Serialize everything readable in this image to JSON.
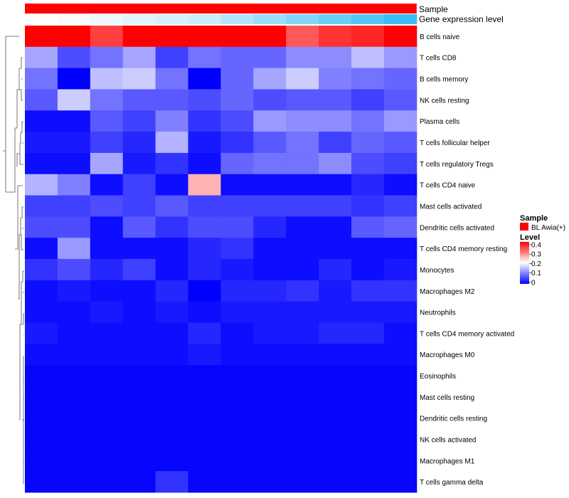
{
  "chart_data": {
    "type": "heatmap",
    "annotation_tracks": [
      {
        "name": "Sample",
        "label": "Sample"
      },
      {
        "name": "Gene expression level",
        "label": "Gene expression level"
      }
    ],
    "gene_expression_level": [
      0.0,
      0.02,
      0.06,
      0.1,
      0.14,
      0.18,
      0.26,
      0.34,
      0.42,
      0.5,
      0.58,
      0.66
    ],
    "rows": [
      "B cells naive",
      "T cells CD8",
      "B cells memory",
      "NK cells resting",
      "Plasma cells",
      "T cells follicular helper",
      "T cells regulatory  Tregs",
      "T cells CD4 naive",
      "Mast cells activated",
      "Dendritic cells activated",
      "T cells CD4 memory resting",
      "Monocytes",
      "Macrophages M2",
      "Neutrophils",
      "T cells CD4 memory activated",
      "Macrophages M0",
      "Eosinophils",
      "Mast cells resting",
      "Dendritic cells resting",
      "NK cells activated",
      "Macrophages M1",
      "T cells gamma delta"
    ],
    "values": [
      [
        0.43,
        0.43,
        0.35,
        0.4,
        0.41,
        0.42,
        0.43,
        0.4,
        0.33,
        0.36,
        0.37,
        0.42
      ],
      [
        0.13,
        0.06,
        0.09,
        0.13,
        0.05,
        0.09,
        0.08,
        0.08,
        0.11,
        0.11,
        0.15,
        0.12
      ],
      [
        0.09,
        0.0,
        0.15,
        0.16,
        0.09,
        0.0,
        0.08,
        0.13,
        0.16,
        0.1,
        0.09,
        0.08
      ],
      [
        0.07,
        0.16,
        0.09,
        0.07,
        0.07,
        0.06,
        0.08,
        0.06,
        0.07,
        0.07,
        0.05,
        0.07
      ],
      [
        0.01,
        0.01,
        0.07,
        0.05,
        0.1,
        0.04,
        0.06,
        0.12,
        0.11,
        0.11,
        0.09,
        0.12
      ],
      [
        0.02,
        0.02,
        0.05,
        0.03,
        0.14,
        0.02,
        0.04,
        0.07,
        0.09,
        0.05,
        0.08,
        0.07
      ],
      [
        0.01,
        0.01,
        0.13,
        0.02,
        0.04,
        0.01,
        0.08,
        0.09,
        0.09,
        0.11,
        0.06,
        0.05
      ],
      [
        0.14,
        0.1,
        0.01,
        0.05,
        0.01,
        0.26,
        0.01,
        0.01,
        0.01,
        0.01,
        0.03,
        0.01
      ],
      [
        0.05,
        0.05,
        0.06,
        0.05,
        0.07,
        0.05,
        0.05,
        0.05,
        0.05,
        0.05,
        0.04,
        0.05
      ],
      [
        0.06,
        0.06,
        0.01,
        0.07,
        0.04,
        0.06,
        0.06,
        0.03,
        0.01,
        0.01,
        0.07,
        0.08
      ],
      [
        0.01,
        0.12,
        0.01,
        0.01,
        0.01,
        0.03,
        0.04,
        0.01,
        0.01,
        0.01,
        0.01,
        0.01
      ],
      [
        0.04,
        0.06,
        0.03,
        0.05,
        0.01,
        0.03,
        0.02,
        0.01,
        0.01,
        0.03,
        0.01,
        0.02
      ],
      [
        0.01,
        0.02,
        0.01,
        0.01,
        0.03,
        0.0,
        0.03,
        0.03,
        0.04,
        0.02,
        0.04,
        0.04
      ],
      [
        0.01,
        0.01,
        0.02,
        0.01,
        0.02,
        0.01,
        0.02,
        0.02,
        0.02,
        0.02,
        0.02,
        0.02
      ],
      [
        0.02,
        0.01,
        0.01,
        0.01,
        0.01,
        0.03,
        0.01,
        0.02,
        0.02,
        0.03,
        0.03,
        0.01
      ],
      [
        0.01,
        0.01,
        0.01,
        0.01,
        0.01,
        0.02,
        0.01,
        0.01,
        0.01,
        0.01,
        0.01,
        0.01
      ],
      [
        0.005,
        0.005,
        0.005,
        0.005,
        0.005,
        0.005,
        0.005,
        0.005,
        0.005,
        0.005,
        0.005,
        0.005
      ],
      [
        0.005,
        0.005,
        0.005,
        0.005,
        0.005,
        0.005,
        0.005,
        0.005,
        0.005,
        0.005,
        0.005,
        0.005
      ],
      [
        0.005,
        0.005,
        0.005,
        0.005,
        0.005,
        0.005,
        0.005,
        0.005,
        0.005,
        0.005,
        0.005,
        0.005
      ],
      [
        0.005,
        0.005,
        0.005,
        0.005,
        0.005,
        0.005,
        0.005,
        0.005,
        0.005,
        0.005,
        0.005,
        0.005
      ],
      [
        0.005,
        0.005,
        0.005,
        0.005,
        0.005,
        0.005,
        0.005,
        0.005,
        0.005,
        0.005,
        0.005,
        0.005
      ],
      [
        0.005,
        0.005,
        0.005,
        0.005,
        0.04,
        0.005,
        0.005,
        0.005,
        0.005,
        0.005,
        0.005,
        0.005
      ]
    ],
    "color_scale": {
      "min": 0,
      "mid": 0.2,
      "max": 0.4,
      "low": "#0000FF",
      "midColor": "#FFFFFF",
      "high": "#FF0000"
    },
    "legend": {
      "sample_title": "Sample",
      "sample_entry": "BL Awia(+)",
      "sample_color": "#FF0000",
      "level_title": "Level",
      "level_ticks": [
        "0.4",
        "0.3",
        "0.2",
        "0.1",
        "0"
      ]
    },
    "dendrogram": "row clustering tree on left side",
    "legend_placement": "right"
  }
}
